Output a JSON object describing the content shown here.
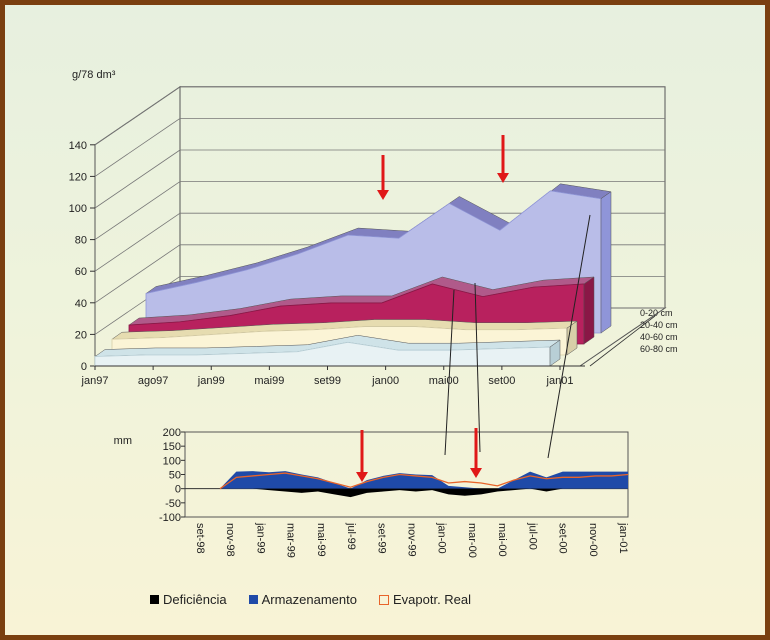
{
  "colors": {
    "arrow": "#e01818",
    "blue": "#1f4aa8",
    "black": "#000000",
    "orange": "#e8642a"
  },
  "chart_data": [
    {
      "type": "area",
      "ylabel": "g/78 dm³",
      "ylim": [
        0,
        140
      ],
      "y_ticks": [
        "0",
        "20",
        "40",
        "60",
        "80",
        "100",
        "120",
        "140"
      ],
      "x_tick_labels": [
        "jan97",
        "ago97",
        "jan99",
        "mai99",
        "set99",
        "jan00",
        "mai00",
        "set00",
        "jan01"
      ],
      "series": [
        {
          "name": "0-20 cm",
          "values": [
            25,
            32,
            40,
            50,
            62,
            60,
            82,
            65,
            90,
            85
          ]
        },
        {
          "name": "20-40 cm",
          "values": [
            12,
            14,
            18,
            24,
            26,
            26,
            38,
            30,
            36,
            38
          ]
        },
        {
          "name": "40-60 cm",
          "values": [
            10,
            11,
            13,
            15,
            16,
            18,
            18,
            16,
            16,
            17
          ]
        },
        {
          "name": "60-80 cm",
          "values": [
            6,
            7,
            7,
            8,
            9,
            15,
            10,
            10,
            11,
            12
          ]
        }
      ],
      "arrows_at": [
        5,
        6.8
      ]
    },
    {
      "type": "area",
      "ylabel": "mm",
      "ylim": [
        -100,
        200
      ],
      "y_ticks": [
        "200",
        "150",
        "100",
        "50",
        "0",
        "-50",
        "-100"
      ],
      "x_tick_labels": [
        "set-98",
        "nov-98",
        "jan-99",
        "mar-99",
        "mai-99",
        "jul-99",
        "set-99",
        "nov-99",
        "jan-00",
        "mar-00",
        "mai-00",
        "jul-00",
        "set-00",
        "nov-00",
        "jan-01"
      ],
      "legend": [
        "Deficiência",
        "Armazenamento",
        "Evapotr. Real"
      ],
      "series": [
        {
          "name": "Armazenamento",
          "values": [
            0,
            60,
            62,
            58,
            62,
            50,
            40,
            20,
            0,
            30,
            45,
            55,
            50,
            48,
            10,
            5,
            0,
            0,
            30,
            60,
            40,
            60,
            60,
            60,
            60,
            60
          ]
        },
        {
          "name": "Deficiência",
          "values": [
            0,
            0,
            0,
            -5,
            -10,
            -15,
            -10,
            -20,
            -30,
            -15,
            -10,
            -5,
            -10,
            -5,
            -20,
            -25,
            -20,
            -10,
            -5,
            0,
            -10,
            0,
            0,
            0,
            0,
            0
          ]
        },
        {
          "name": "Evapotr. Real",
          "values": [
            0,
            40,
            45,
            50,
            55,
            45,
            35,
            20,
            5,
            25,
            40,
            50,
            45,
            40,
            20,
            25,
            20,
            10,
            30,
            45,
            35,
            40,
            40,
            45,
            45,
            50
          ]
        }
      ],
      "arrows_at": [
        0.3,
        0.58
      ]
    }
  ]
}
